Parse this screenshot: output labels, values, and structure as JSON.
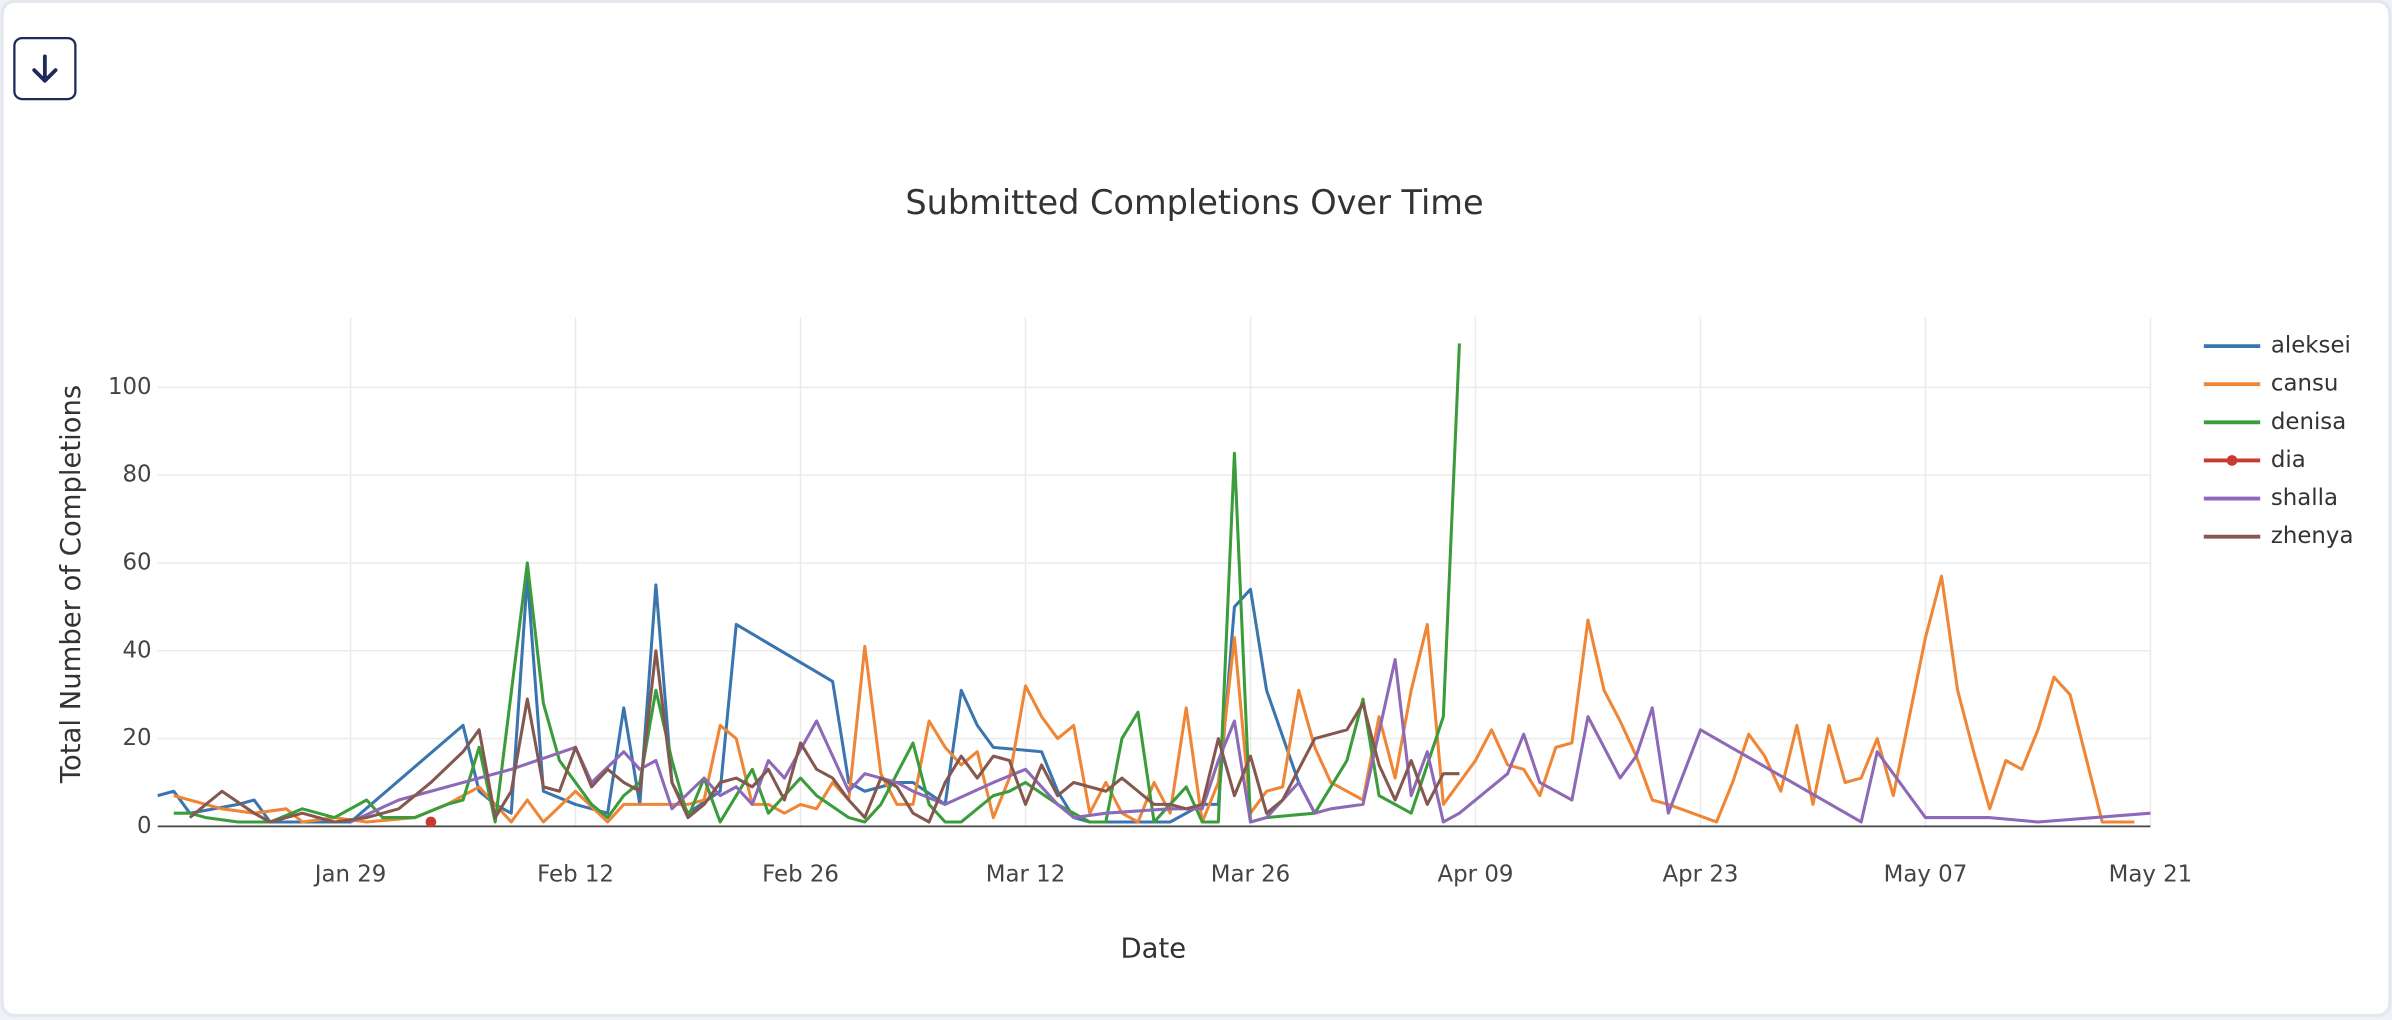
{
  "chart_data": {
    "type": "line",
    "title": "Submitted Completions Over Time",
    "xlabel": "Date",
    "ylabel": "Total Number of Completions",
    "xlim": [
      "Jan 17",
      "May 21"
    ],
    "xticks": [
      "Jan 29",
      "Feb 12",
      "Feb 26",
      "Mar 12",
      "Mar 26",
      "Apr 09",
      "Apr 23",
      "May 07",
      "May 21"
    ],
    "ylim": [
      0,
      116
    ],
    "yticks": [
      0,
      20,
      40,
      60,
      80,
      100
    ],
    "grid": true,
    "legend": "right",
    "series": [
      {
        "name": "aleksei",
        "color": "#3a75b0",
        "x": [
          "Jan 17",
          "Jan 18",
          "Jan 19",
          "Jan 22",
          "Jan 23",
          "Jan 24",
          "Jan 29",
          "Feb 05",
          "Feb 06",
          "Feb 07",
          "Feb 08",
          "Feb 09",
          "Feb 10",
          "Feb 12",
          "Feb 14",
          "Feb 15",
          "Feb 16",
          "Feb 17",
          "Feb 18",
          "Feb 19",
          "Feb 21",
          "Feb 22",
          "Feb 28",
          "Mar 01",
          "Mar 02",
          "Mar 04",
          "Mar 05",
          "Mar 07",
          "Mar 08",
          "Mar 09",
          "Mar 10",
          "Mar 13",
          "Mar 14",
          "Mar 15",
          "Mar 16",
          "Mar 21",
          "Mar 22",
          "Mar 23",
          "Mar 24",
          "Mar 25",
          "Mar 26",
          "Mar 27",
          "Mar 29",
          "Mar 30"
        ],
        "values": [
          7,
          8,
          3,
          5,
          6,
          1,
          1,
          23,
          8,
          5,
          3,
          57,
          8,
          5,
          3,
          27,
          5,
          55,
          10,
          3,
          8,
          46,
          33,
          10,
          8,
          10,
          10,
          5,
          31,
          23,
          18,
          17,
          8,
          2,
          1,
          1,
          3,
          5,
          5,
          50,
          54,
          31,
          10,
          3
        ]
      },
      {
        "name": "cansu",
        "color": "#ef8636",
        "x": [
          "Jan 18",
          "Jan 21",
          "Jan 23",
          "Jan 25",
          "Jan 26",
          "Jan 28",
          "Jan 30",
          "Feb 02",
          "Feb 04",
          "Feb 06",
          "Feb 07",
          "Feb 08",
          "Feb 09",
          "Feb 10",
          "Feb 12",
          "Feb 14",
          "Feb 15",
          "Feb 17",
          "Feb 19",
          "Feb 20",
          "Feb 21",
          "Feb 22",
          "Feb 23",
          "Feb 24",
          "Feb 25",
          "Feb 26",
          "Feb 27",
          "Feb 28",
          "Mar 01",
          "Mar 02",
          "Mar 03",
          "Mar 04",
          "Mar 05",
          "Mar 06",
          "Mar 07",
          "Mar 08",
          "Mar 09",
          "Mar 10",
          "Mar 11",
          "Mar 12",
          "Mar 13",
          "Mar 14",
          "Mar 15",
          "Mar 16",
          "Mar 17",
          "Mar 18",
          "Mar 19",
          "Mar 20",
          "Mar 21",
          "Mar 22",
          "Mar 23",
          "Mar 24",
          "Mar 25",
          "Mar 26",
          "Mar 27",
          "Mar 28",
          "Mar 29",
          "Mar 30",
          "Mar 31",
          "Apr 02",
          "Apr 03",
          "Apr 04",
          "Apr 05",
          "Apr 06",
          "Apr 07",
          "Apr 09",
          "Apr 10",
          "Apr 11",
          "Apr 12",
          "Apr 13",
          "Apr 14",
          "Apr 15",
          "Apr 16",
          "Apr 17",
          "Apr 18",
          "Apr 19",
          "Apr 20",
          "Apr 21",
          "Apr 24",
          "Apr 25",
          "Apr 26",
          "Apr 27",
          "Apr 28",
          "Apr 29",
          "Apr 30",
          "May 01",
          "May 02",
          "May 03",
          "May 04",
          "May 05",
          "May 07",
          "May 08",
          "May 09",
          "May 10",
          "May 11",
          "May 12",
          "May 13",
          "May 14",
          "May 15",
          "May 16",
          "May 18",
          "May 20"
        ],
        "values": [
          7,
          4,
          3,
          4,
          1,
          2,
          1,
          2,
          5,
          9,
          5,
          1,
          6,
          1,
          8,
          1,
          5,
          5,
          5,
          6,
          23,
          20,
          5,
          5,
          3,
          5,
          4,
          10,
          6,
          41,
          12,
          5,
          5,
          24,
          18,
          14,
          17,
          2,
          11,
          32,
          25,
          20,
          23,
          3,
          10,
          3,
          1,
          10,
          3,
          27,
          1,
          10,
          43,
          3,
          8,
          9,
          31,
          18,
          10,
          6,
          25,
          11,
          31,
          46,
          5,
          15,
          22,
          14,
          13,
          7,
          18,
          19,
          47,
          31,
          24,
          16,
          6,
          5,
          1,
          10,
          21,
          16,
          8,
          23,
          5,
          23,
          10,
          11,
          20,
          7,
          43,
          57,
          31,
          17,
          4,
          15,
          13,
          22,
          34,
          30,
          1,
          1
        ]
      },
      {
        "name": "denisa",
        "color": "#3b9c3b",
        "x": [
          "Jan 18",
          "Jan 19",
          "Jan 20",
          "Jan 22",
          "Jan 24",
          "Jan 26",
          "Jan 28",
          "Jan 30",
          "Jan 31",
          "Feb 02",
          "Feb 04",
          "Feb 05",
          "Feb 06",
          "Feb 07",
          "Feb 09",
          "Feb 10",
          "Feb 11",
          "Feb 13",
          "Feb 14",
          "Feb 15",
          "Feb 16",
          "Feb 17",
          "Feb 18",
          "Feb 19",
          "Feb 20",
          "Feb 21",
          "Feb 23",
          "Feb 24",
          "Feb 26",
          "Feb 27",
          "Mar 01",
          "Mar 02",
          "Mar 03",
          "Mar 04",
          "Mar 05",
          "Mar 06",
          "Mar 07",
          "Mar 08",
          "Mar 10",
          "Mar 11",
          "Mar 12",
          "Mar 14",
          "Mar 15",
          "Mar 16",
          "Mar 17",
          "Mar 18",
          "Mar 19",
          "Mar 20",
          "Mar 21",
          "Mar 22",
          "Mar 23",
          "Mar 24",
          "Mar 25",
          "Mar 26",
          "Mar 27",
          "Mar 30",
          "Apr 01",
          "Apr 02",
          "Apr 03",
          "Apr 05",
          "Apr 07",
          "Apr 08"
        ],
        "values": [
          3,
          3,
          2,
          1,
          1,
          4,
          2,
          6,
          2,
          2,
          5,
          6,
          18,
          1,
          60,
          28,
          15,
          5,
          2,
          7,
          10,
          31,
          15,
          2,
          11,
          1,
          13,
          3,
          11,
          7,
          2,
          1,
          5,
          12,
          19,
          5,
          1,
          1,
          7,
          8,
          10,
          5,
          3,
          1,
          1,
          20,
          26,
          1,
          5,
          9,
          1,
          1,
          85,
          1,
          2,
          3,
          15,
          29,
          7,
          3,
          25,
          110
        ]
      },
      {
        "name": "dia",
        "color": "#c53a32",
        "mode": "lines+markers",
        "x": [
          "Feb 03"
        ],
        "values": [
          1
        ]
      },
      {
        "name": "shalla",
        "color": "#8d69b8",
        "x": [
          "Jan 29",
          "Feb 01",
          "Feb 03",
          "Feb 08",
          "Feb 12",
          "Feb 13",
          "Feb 15",
          "Feb 16",
          "Feb 17",
          "Feb 18",
          "Feb 20",
          "Feb 21",
          "Feb 22",
          "Feb 23",
          "Feb 24",
          "Feb 25",
          "Feb 27",
          "Mar 01",
          "Mar 02",
          "Mar 04",
          "Mar 05",
          "Mar 07",
          "Mar 10",
          "Mar 12",
          "Mar 14",
          "Mar 15",
          "Mar 17",
          "Mar 21",
          "Mar 23",
          "Mar 24",
          "Mar 25",
          "Mar 26",
          "Mar 27",
          "Mar 29",
          "Mar 30",
          "Mar 31",
          "Apr 02",
          "Apr 04",
          "Apr 05",
          "Apr 06",
          "Apr 07",
          "Apr 08",
          "Apr 11",
          "Apr 12",
          "Apr 13",
          "Apr 15",
          "Apr 16",
          "Apr 18",
          "Apr 19",
          "Apr 20",
          "Apr 21",
          "Apr 23",
          "May 03",
          "May 04",
          "May 07",
          "May 11",
          "May 14",
          "May 21"
        ],
        "values": [
          1,
          6,
          8,
          13,
          18,
          10,
          17,
          13,
          15,
          4,
          11,
          7,
          9,
          5,
          15,
          11,
          24,
          8,
          12,
          10,
          8,
          5,
          10,
          13,
          5,
          2,
          3,
          4,
          4,
          15,
          24,
          1,
          2,
          10,
          3,
          4,
          5,
          38,
          7,
          17,
          1,
          3,
          12,
          21,
          10,
          6,
          25,
          11,
          16,
          27,
          3,
          22,
          1,
          17,
          2,
          2,
          1,
          3
        ]
      },
      {
        "name": "zhenya",
        "color": "#84584e",
        "x": [
          "Jan 19",
          "Jan 21",
          "Jan 23",
          "Jan 24",
          "Jan 26",
          "Jan 28",
          "Jan 30",
          "Feb 01",
          "Feb 03",
          "Feb 05",
          "Feb 06",
          "Feb 07",
          "Feb 08",
          "Feb 09",
          "Feb 10",
          "Feb 11",
          "Feb 12",
          "Feb 13",
          "Feb 14",
          "Feb 15",
          "Feb 16",
          "Feb 17",
          "Feb 18",
          "Feb 19",
          "Feb 20",
          "Feb 21",
          "Feb 22",
          "Feb 23",
          "Feb 24",
          "Feb 25",
          "Feb 26",
          "Feb 27",
          "Feb 28",
          "Mar 01",
          "Mar 02",
          "Mar 03",
          "Mar 04",
          "Mar 05",
          "Mar 06",
          "Mar 07",
          "Mar 08",
          "Mar 09",
          "Mar 10",
          "Mar 11",
          "Mar 12",
          "Mar 13",
          "Mar 14",
          "Mar 15",
          "Mar 16",
          "Mar 17",
          "Mar 18",
          "Mar 19",
          "Mar 20",
          "Mar 21",
          "Mar 22",
          "Mar 23",
          "Mar 24",
          "Mar 25",
          "Mar 26",
          "Mar 27",
          "Mar 28",
          "Mar 30",
          "Mar 31",
          "Apr 01",
          "Apr 02",
          "Apr 03",
          "Apr 04",
          "Apr 05",
          "Apr 06",
          "Apr 07",
          "Apr 08"
        ],
        "values": [
          2,
          8,
          3,
          1,
          3,
          1,
          2,
          4,
          10,
          17,
          22,
          2,
          8,
          29,
          9,
          8,
          18,
          9,
          13,
          10,
          8,
          40,
          10,
          2,
          5,
          10,
          11,
          9,
          13,
          6,
          19,
          13,
          11,
          6,
          2,
          11,
          9,
          3,
          1,
          10,
          16,
          11,
          16,
          15,
          5,
          14,
          7,
          10,
          9,
          8,
          11,
          8,
          5,
          5,
          4,
          5,
          20,
          7,
          16,
          3,
          6,
          20,
          21,
          22,
          28,
          14,
          6,
          15,
          5,
          12,
          12
        ]
      }
    ]
  }
}
